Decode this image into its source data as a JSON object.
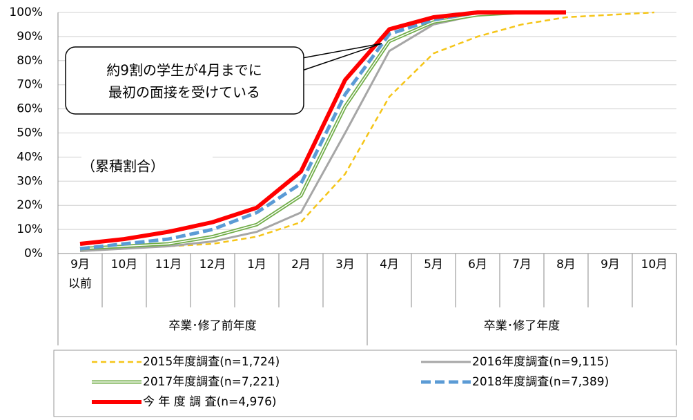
{
  "chart_data": {
    "type": "line",
    "annotation": [
      "約9割の学生が4月までに",
      "最初の面接を受けている"
    ],
    "y_label": "（累積割合）",
    "categories": [
      "9月\n以前",
      "10月",
      "11月",
      "12月",
      "1月",
      "2月",
      "3月",
      "4月",
      "5月",
      "6月",
      "7月",
      "8月",
      "9月",
      "10月"
    ],
    "groups": [
      {
        "label": "卒業･修了前年度",
        "span": 7
      },
      {
        "label": "卒業･修了年度",
        "span": 7
      }
    ],
    "ylim": [
      0,
      100
    ],
    "yticks": [
      {
        "value": 0,
        "label": "0%"
      },
      {
        "value": 10,
        "label": "10%"
      },
      {
        "value": 20,
        "label": "20%"
      },
      {
        "value": 30,
        "label": "30%"
      },
      {
        "value": 40,
        "label": "40%"
      },
      {
        "value": 50,
        "label": "50%"
      },
      {
        "value": 60,
        "label": "60%"
      },
      {
        "value": 70,
        "label": "70%"
      },
      {
        "value": 80,
        "label": "80%"
      },
      {
        "value": 90,
        "label": "90%"
      },
      {
        "value": 100,
        "label": "100%"
      }
    ],
    "grid": true,
    "series": [
      {
        "name": "2015年度調査(n=1,724)",
        "color": "#f5c518",
        "style": "dashed",
        "values": [
          1,
          2,
          3,
          4,
          7,
          13,
          33,
          65,
          83,
          90,
          95,
          98,
          99,
          100
        ]
      },
      {
        "name": "2016年度調査(n=9,115)",
        "color": "#a6a6a6",
        "style": "solid",
        "values": [
          1,
          2,
          3,
          5,
          9,
          17,
          50,
          84,
          95,
          99,
          100,
          100,
          null,
          null
        ]
      },
      {
        "name": "2017年度調査(n=7,221)",
        "color": "#70ad47",
        "style": "double",
        "values": [
          2,
          3,
          4,
          7,
          12,
          24,
          61,
          88,
          96,
          99,
          100,
          100,
          null,
          null
        ]
      },
      {
        "name": "2018年度調査(n=7,389)",
        "color": "#5b9bd5",
        "style": "longdash",
        "values": [
          2,
          4,
          6,
          10,
          17,
          29,
          66,
          91,
          97,
          100,
          100,
          100,
          null,
          null
        ]
      },
      {
        "name": "今 年 度 調 査(n=4,976)",
        "color": "#ff0000",
        "style": "thick",
        "values": [
          4,
          6,
          9,
          13,
          19,
          34,
          72,
          93,
          98,
          100,
          100,
          100,
          null,
          null
        ]
      }
    ]
  }
}
